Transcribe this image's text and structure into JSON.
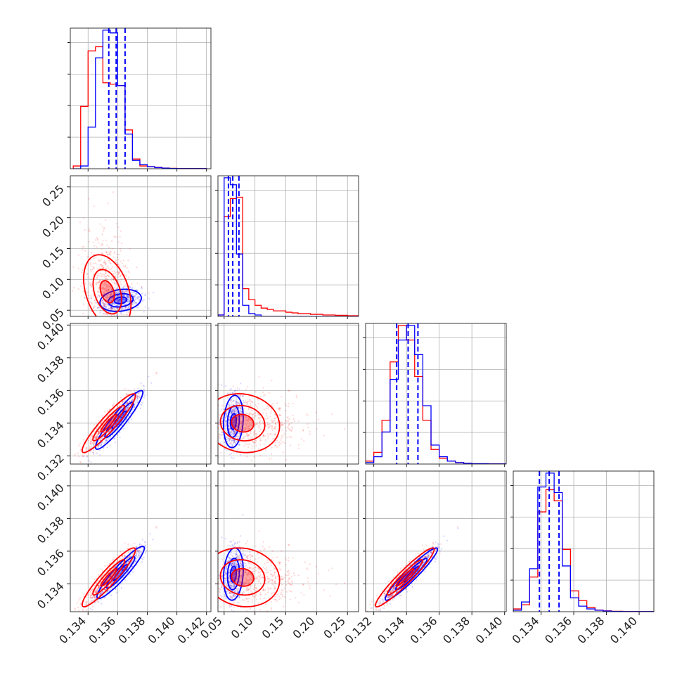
{
  "chart_data": {
    "type": "corner",
    "series": [
      {
        "name": "",
        "color": "#0000ff"
      },
      {
        "name": "",
        "color": "#ff0000"
      }
    ],
    "grid": true,
    "parameters": [
      {
        "range": [
          0.1328,
          0.1423
        ],
        "ticks": [
          "0.134",
          "0.136",
          "0.138",
          "0.140",
          "0.142"
        ],
        "tick_values": [
          0.134,
          0.136,
          0.138,
          0.14,
          0.142
        ]
      },
      {
        "range": [
          0.04,
          0.268
        ],
        "ticks": [
          "0.05",
          "0.10",
          "0.15",
          "0.20",
          "0.25"
        ],
        "tick_values": [
          0.05,
          0.1,
          0.15,
          0.2,
          0.25
        ]
      },
      {
        "range": [
          0.1315,
          0.1401
        ],
        "ticks": [
          "0.132",
          "0.134",
          "0.136",
          "0.138",
          "0.140"
        ],
        "tick_values": [
          0.132,
          0.134,
          0.136,
          0.138,
          0.14
        ]
      },
      {
        "range": [
          0.1323,
          0.1409
        ],
        "ticks": [
          "0.134",
          "0.136",
          "0.138",
          "0.140"
        ],
        "tick_values": [
          0.134,
          0.136,
          0.138,
          0.14
        ]
      }
    ],
    "marginals": [
      {
        "bins": [
          0.133,
          0.1335,
          0.134,
          0.1345,
          0.135,
          0.1355,
          0.136,
          0.1365,
          0.137,
          0.1375,
          0.138,
          0.1385,
          0.139,
          0.1395,
          0.14,
          0.142
        ],
        "blue": [
          0,
          0.02,
          0.3,
          0.8,
          1.0,
          0.98,
          0.6,
          0.25,
          0.06,
          0.03,
          0.015,
          0.008,
          0.004,
          0.002,
          0.001
        ],
        "red": [
          0.02,
          0.45,
          0.85,
          0.88,
          0.62,
          0.61,
          0.6,
          0.28,
          0.07,
          0.02,
          0.015,
          0.01,
          0.005,
          0.003,
          0.002
        ],
        "quantiles": [
          0.1354,
          0.1359,
          0.1365
        ]
      },
      {
        "bins": [
          0.04,
          0.05,
          0.06,
          0.07,
          0.08,
          0.09,
          0.1,
          0.11,
          0.12,
          0.13,
          0.14,
          0.15,
          0.16,
          0.17,
          0.19,
          0.21,
          0.23,
          0.25,
          0.268
        ],
        "blue": [
          0.01,
          1.0,
          0.95,
          0.45,
          0.08,
          0.02,
          0.01,
          0,
          0,
          0,
          0,
          0,
          0,
          0,
          0,
          0,
          0,
          0
        ],
        "red": [
          0.01,
          0.72,
          0.85,
          0.86,
          0.2,
          0.12,
          0.08,
          0.06,
          0.05,
          0.04,
          0.04,
          0.03,
          0.025,
          0.02,
          0.015,
          0.01,
          0.008,
          0.005
        ],
        "quantiles": [
          0.057,
          0.064,
          0.074
        ]
      },
      {
        "bins": [
          0.1315,
          0.132,
          0.1325,
          0.133,
          0.1335,
          0.134,
          0.1345,
          0.135,
          0.1355,
          0.136,
          0.1365,
          0.137,
          0.1375,
          0.138,
          0.139,
          0.1401
        ],
        "blue": [
          0.01,
          0.05,
          0.22,
          0.58,
          0.85,
          0.95,
          0.75,
          0.4,
          0.13,
          0.05,
          0.02,
          0.01,
          0.005,
          0.002,
          0.001
        ],
        "red": [
          0.02,
          0.08,
          0.3,
          0.7,
          0.95,
          0.85,
          0.6,
          0.3,
          0.1,
          0.04,
          0.02,
          0.01,
          0.005,
          0.002,
          0.001
        ],
        "quantiles": [
          0.1334,
          0.1341,
          0.1347
        ]
      },
      {
        "bins": [
          0.1323,
          0.1328,
          0.1333,
          0.1338,
          0.1343,
          0.1348,
          0.1353,
          0.1358,
          0.1363,
          0.1368,
          0.1373,
          0.1378,
          0.1383,
          0.139,
          0.14,
          0.1409
        ],
        "blue": [
          0.01,
          0.07,
          0.31,
          0.9,
          1.0,
          0.86,
          0.33,
          0.1,
          0.04,
          0.02,
          0.01,
          0.005,
          0.002,
          0.001,
          0.001
        ],
        "red": [
          0.02,
          0.05,
          0.25,
          0.72,
          0.88,
          0.8,
          0.45,
          0.15,
          0.08,
          0.03,
          0.012,
          0.006,
          0.003,
          0.002,
          0.001
        ],
        "quantiles": [
          0.1339,
          0.1345,
          0.1351
        ]
      }
    ],
    "pairs": [
      {
        "i": 1,
        "j": 0,
        "blue": {
          "mean": [
            0.1362,
            0.066
          ],
          "sd": [
            0.0007,
            0.009
          ],
          "rho": 0.2
        },
        "red": {
          "mean": [
            0.1353,
            0.08
          ],
          "sd": [
            0.0008,
            0.03
          ],
          "rho": -0.35
        }
      },
      {
        "i": 2,
        "j": 0,
        "blue": {
          "mean": [
            0.1361,
            0.1342
          ],
          "sd": [
            0.0008,
            0.0009
          ],
          "rho": 0.93
        },
        "red": {
          "mean": [
            0.1354,
            0.134
          ],
          "sd": [
            0.0009,
            0.0009
          ],
          "rho": 0.93
        }
      },
      {
        "i": 2,
        "j": 1,
        "blue": {
          "mean": [
            0.065,
            0.1341
          ],
          "sd": [
            0.008,
            0.0008
          ],
          "rho": 0.15
        },
        "red": {
          "mean": [
            0.08,
            0.134
          ],
          "sd": [
            0.03,
            0.0009
          ],
          "rho": -0.1
        }
      },
      {
        "i": 3,
        "j": 0,
        "blue": {
          "mean": [
            0.1362,
            0.1347
          ],
          "sd": [
            0.0008,
            0.0008
          ],
          "rho": 0.93
        },
        "red": {
          "mean": [
            0.1354,
            0.1344
          ],
          "sd": [
            0.0009,
            0.0009
          ],
          "rho": 0.93
        }
      },
      {
        "i": 3,
        "j": 1,
        "blue": {
          "mean": [
            0.065,
            0.1346
          ],
          "sd": [
            0.008,
            0.0008
          ],
          "rho": 0.15
        },
        "red": {
          "mean": [
            0.08,
            0.1344
          ],
          "sd": [
            0.03,
            0.0009
          ],
          "rho": -0.1
        }
      },
      {
        "i": 3,
        "j": 2,
        "blue": {
          "mean": [
            0.1343,
            0.1346
          ],
          "sd": [
            0.0008,
            0.0008
          ],
          "rho": 0.95
        },
        "red": {
          "mean": [
            0.1339,
            0.1344
          ],
          "sd": [
            0.0009,
            0.0009
          ],
          "rho": 0.95
        }
      }
    ]
  }
}
